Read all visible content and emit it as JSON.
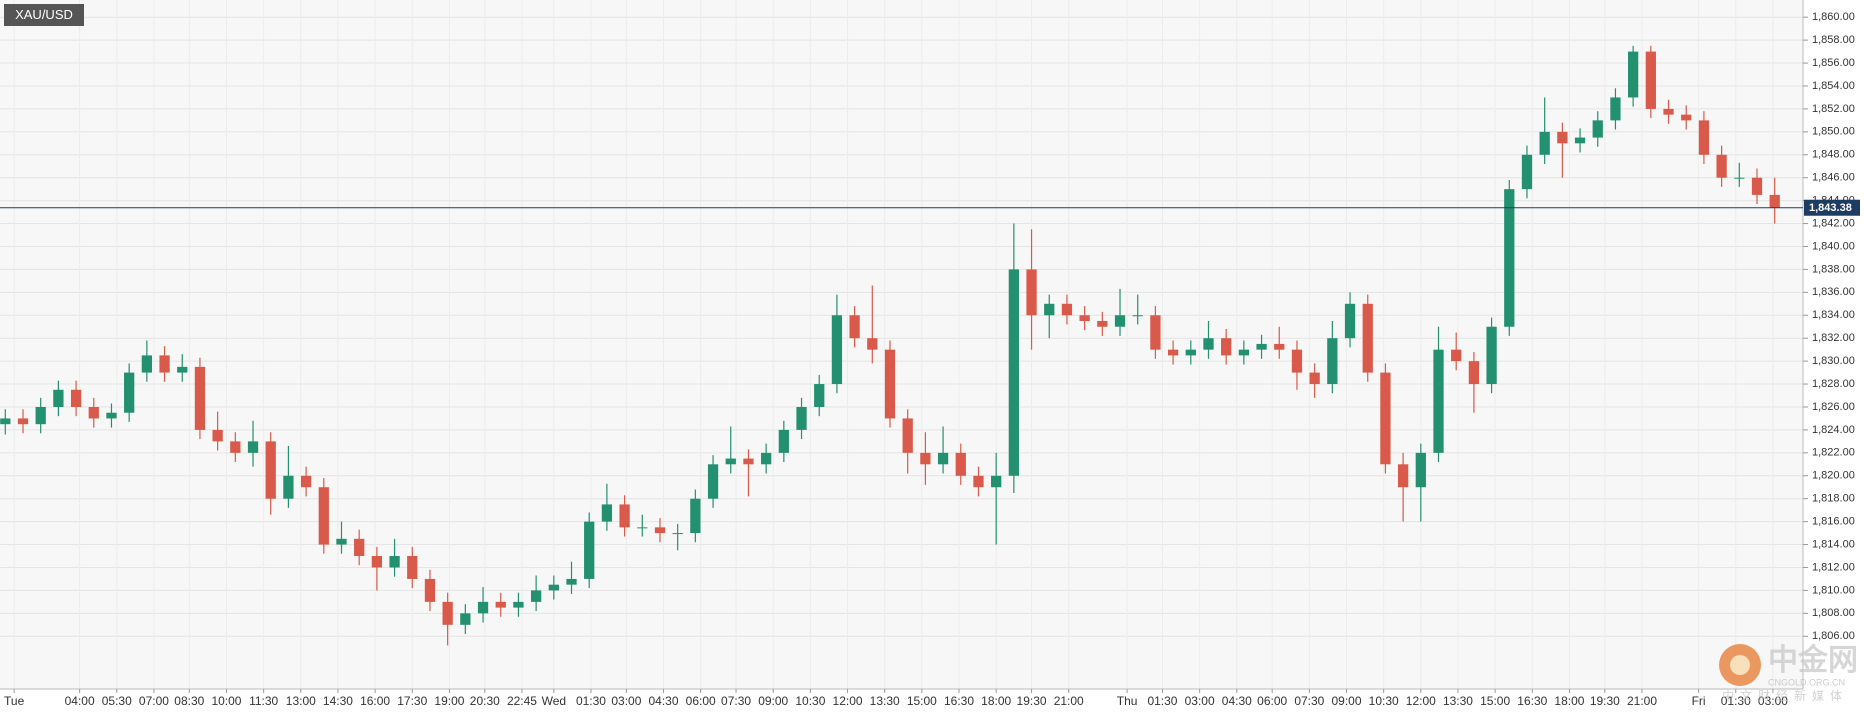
{
  "chart_data": {
    "type": "candlestick",
    "title": "XAU/USD",
    "up_color": "#23906f",
    "down_color": "#d9594a",
    "grid": true,
    "xlim": [
      -0.3,
      101.6
    ],
    "ylim": [
      1801.4,
      1861.5
    ],
    "open": [
      1824.5,
      1825,
      1824.5,
      1826,
      1827.5,
      1826,
      1825,
      1825.5,
      1829,
      1830.5,
      1829,
      1829.5,
      1824,
      1823,
      1822,
      1823,
      1818,
      1820,
      1819,
      1814,
      1814.5,
      1813,
      1812,
      1813,
      1811,
      1809,
      1807,
      1808,
      1809,
      1808.5,
      1809,
      1810,
      1810.5,
      1811,
      1816,
      1817.5,
      1815.5,
      1815.5,
      1815,
      1815,
      1818,
      1821,
      1821.5,
      1821,
      1822,
      1824,
      1826,
      1828,
      1834,
      1832,
      1831,
      1825,
      1822,
      1821,
      1822,
      1820,
      1819,
      1820,
      1838,
      1834,
      1835,
      1834,
      1833.5,
      1833,
      1834,
      1834,
      1831,
      1830.5,
      1831,
      1832,
      1830.5,
      1831,
      1831.5,
      1831,
      1829,
      1828,
      1832,
      1835,
      1829,
      1821,
      1819,
      1822,
      1831,
      1830,
      1828,
      1833,
      1845,
      1848,
      1850,
      1849,
      1849.5,
      1851,
      1853,
      1857,
      1852,
      1851.5,
      1851,
      1848,
      1846,
      1846,
      1844.5
    ],
    "high": [
      1825.8,
      1825.8,
      1826.8,
      1828.3,
      1828.3,
      1826.8,
      1826.3,
      1829.8,
      1831.8,
      1831.3,
      1830.6,
      1830.3,
      1825.6,
      1823.8,
      1824.8,
      1823.8,
      1822.6,
      1820.8,
      1819.8,
      1816,
      1815.3,
      1813.8,
      1814.5,
      1813.8,
      1811.8,
      1809.8,
      1808.8,
      1810.3,
      1809.8,
      1809.8,
      1811.3,
      1811.3,
      1812.5,
      1816.8,
      1819.3,
      1818.3,
      1816.6,
      1816.3,
      1815.8,
      1818.8,
      1821.8,
      1824.3,
      1822.3,
      1822.8,
      1824.8,
      1826.8,
      1828.8,
      1835.8,
      1834.8,
      1836.6,
      1831.8,
      1825.8,
      1823.8,
      1824.3,
      1822.8,
      1820.8,
      1822,
      1842,
      1841.5,
      1835.8,
      1835.8,
      1834.8,
      1834.3,
      1836.3,
      1835.8,
      1834.8,
      1831.8,
      1831.8,
      1833.5,
      1832.8,
      1831.8,
      1832.3,
      1833,
      1831.8,
      1829.8,
      1833.5,
      1836,
      1835.8,
      1829.8,
      1822,
      1822.8,
      1833,
      1832.5,
      1830.8,
      1833.8,
      1845.8,
      1848.8,
      1853,
      1850.8,
      1850.3,
      1851.8,
      1853.8,
      1857.5,
      1857.5,
      1852.8,
      1852.3,
      1851.8,
      1848.8,
      1847.3,
      1846.8,
      1846
    ],
    "low": [
      1823.6,
      1823.7,
      1823.7,
      1825.2,
      1825.2,
      1824.2,
      1824.2,
      1824.7,
      1828.2,
      1828.2,
      1828.2,
      1823.2,
      1822.2,
      1821.2,
      1820.8,
      1816.6,
      1817.2,
      1818.2,
      1813.2,
      1813.2,
      1812.2,
      1810,
      1811.2,
      1810.2,
      1808.2,
      1805.2,
      1806.2,
      1807.2,
      1807.7,
      1807.7,
      1808.2,
      1809.2,
      1809.7,
      1810.2,
      1815.2,
      1814.7,
      1814.7,
      1814.2,
      1813.5,
      1814.2,
      1817.2,
      1820.2,
      1818.2,
      1820.2,
      1821.2,
      1823.2,
      1825.2,
      1827.2,
      1831.2,
      1829.8,
      1824.2,
      1820.2,
      1819.2,
      1820.2,
      1819.2,
      1818.2,
      1814,
      1818.5,
      1831,
      1832,
      1833.2,
      1832.7,
      1832.2,
      1832.2,
      1833.2,
      1830.2,
      1829.7,
      1829.7,
      1830.2,
      1829.7,
      1829.7,
      1830.2,
      1830.2,
      1827.5,
      1826.8,
      1827.2,
      1831.2,
      1828.2,
      1820.2,
      1816,
      1816,
      1821.2,
      1829.2,
      1825.5,
      1827.2,
      1832.2,
      1844.2,
      1847.2,
      1846,
      1848.2,
      1848.7,
      1850.2,
      1852.2,
      1851.2,
      1850.7,
      1850.2,
      1847.2,
      1845.2,
      1845.2,
      1843.7,
      1842
    ],
    "close": [
      1825,
      1824.5,
      1826,
      1827.5,
      1826,
      1825,
      1825.5,
      1829,
      1830.5,
      1829,
      1829.5,
      1824,
      1823,
      1822,
      1823,
      1818,
      1820,
      1819,
      1814,
      1814.5,
      1813,
      1812,
      1813,
      1811,
      1809,
      1807,
      1808,
      1809,
      1808.5,
      1809,
      1810,
      1810.5,
      1811,
      1816,
      1817.5,
      1815.5,
      1815.5,
      1815,
      1815,
      1818,
      1821,
      1821.5,
      1821,
      1822,
      1824,
      1826,
      1828,
      1834,
      1832,
      1831,
      1825,
      1822,
      1821,
      1822,
      1820,
      1819,
      1820,
      1838,
      1834,
      1835,
      1834,
      1833.5,
      1833,
      1834,
      1834,
      1831,
      1830.5,
      1831,
      1832,
      1830.5,
      1831,
      1831.5,
      1831,
      1829,
      1828,
      1832,
      1835,
      1829,
      1821,
      1819,
      1822,
      1831,
      1830,
      1828,
      1833,
      1845,
      1848,
      1850,
      1849,
      1849.5,
      1851,
      1853,
      1857,
      1852,
      1851.5,
      1851,
      1848,
      1846,
      1846,
      1844.5,
      1843.4
    ],
    "last_price": {
      "value": 1843.38,
      "label": "1,843.38"
    },
    "yticks": [
      {
        "value": 1806,
        "label": "1,806.00"
      },
      {
        "value": 1808,
        "label": "1,808.00"
      },
      {
        "value": 1810,
        "label": "1,810.00"
      },
      {
        "value": 1812,
        "label": "1,812.00"
      },
      {
        "value": 1814,
        "label": "1,814.00"
      },
      {
        "value": 1816,
        "label": "1,816.00"
      },
      {
        "value": 1818,
        "label": "1,818.00"
      },
      {
        "value": 1820,
        "label": "1,820.00"
      },
      {
        "value": 1822,
        "label": "1,822.00"
      },
      {
        "value": 1824,
        "label": "1,824.00"
      },
      {
        "value": 1826,
        "label": "1,826.00"
      },
      {
        "value": 1828,
        "label": "1,828.00"
      },
      {
        "value": 1830,
        "label": "1,830.00"
      },
      {
        "value": 1832,
        "label": "1,832.00"
      },
      {
        "value": 1834,
        "label": "1,834.00"
      },
      {
        "value": 1836,
        "label": "1,836.00"
      },
      {
        "value": 1838,
        "label": "1,838.00"
      },
      {
        "value": 1840,
        "label": "1,840.00"
      },
      {
        "value": 1842,
        "label": "1,842.00"
      },
      {
        "value": 1844,
        "label": "1,844.00"
      },
      {
        "value": 1846,
        "label": "1,846.00"
      },
      {
        "value": 1848,
        "label": "1,848.00"
      },
      {
        "value": 1850,
        "label": "1,850.00"
      },
      {
        "value": 1852,
        "label": "1,852.00"
      },
      {
        "value": 1854,
        "label": "1,854.00"
      },
      {
        "value": 1856,
        "label": "1,856.00"
      },
      {
        "value": 1858,
        "label": "1,858.00"
      },
      {
        "value": 1860,
        "label": "1,860.00"
      }
    ],
    "xticks": [
      {
        "value": 0.5,
        "label": "Tue"
      },
      {
        "value": 4.2,
        "label": "04:00"
      },
      {
        "value": 6.3,
        "label": "05:30"
      },
      {
        "value": 8.4,
        "label": "07:00"
      },
      {
        "value": 10.4,
        "label": "08:30"
      },
      {
        "value": 12.5,
        "label": "10:00"
      },
      {
        "value": 14.6,
        "label": "11:30"
      },
      {
        "value": 16.7,
        "label": "13:00"
      },
      {
        "value": 18.8,
        "label": "14:30"
      },
      {
        "value": 20.9,
        "label": "16:00"
      },
      {
        "value": 23.0,
        "label": "17:30"
      },
      {
        "value": 25.1,
        "label": "19:00"
      },
      {
        "value": 27.1,
        "label": "20:30"
      },
      {
        "value": 29.2,
        "label": "22:45"
      },
      {
        "value": 31.0,
        "label": "Wed"
      },
      {
        "value": 33.1,
        "label": "01:30"
      },
      {
        "value": 35.1,
        "label": "03:00"
      },
      {
        "value": 37.2,
        "label": "04:30"
      },
      {
        "value": 39.3,
        "label": "06:00"
      },
      {
        "value": 41.3,
        "label": "07:30"
      },
      {
        "value": 43.4,
        "label": "09:00"
      },
      {
        "value": 45.5,
        "label": "10:30"
      },
      {
        "value": 47.6,
        "label": "12:00"
      },
      {
        "value": 49.7,
        "label": "13:30"
      },
      {
        "value": 51.8,
        "label": "15:00"
      },
      {
        "value": 53.9,
        "label": "16:30"
      },
      {
        "value": 56.0,
        "label": "18:00"
      },
      {
        "value": 58.0,
        "label": "19:30"
      },
      {
        "value": 60.1,
        "label": "21:00"
      },
      {
        "value": 63.4,
        "label": "Thu"
      },
      {
        "value": 65.4,
        "label": "01:30"
      },
      {
        "value": 67.5,
        "label": "03:00"
      },
      {
        "value": 69.6,
        "label": "04:30"
      },
      {
        "value": 71.6,
        "label": "06:00"
      },
      {
        "value": 73.7,
        "label": "07:30"
      },
      {
        "value": 75.8,
        "label": "09:00"
      },
      {
        "value": 77.9,
        "label": "10:30"
      },
      {
        "value": 80.0,
        "label": "12:00"
      },
      {
        "value": 82.1,
        "label": "13:30"
      },
      {
        "value": 84.2,
        "label": "15:00"
      },
      {
        "value": 86.3,
        "label": "16:30"
      },
      {
        "value": 88.4,
        "label": "18:00"
      },
      {
        "value": 90.4,
        "label": "19:30"
      },
      {
        "value": 92.5,
        "label": "21:00"
      },
      {
        "value": 95.7,
        "label": "Fri"
      },
      {
        "value": 97.8,
        "label": "01:30"
      },
      {
        "value": 99.9,
        "label": "03:00"
      }
    ]
  },
  "watermark": {
    "name": "中金网",
    "domain": "CNGOLD.ORG.CN",
    "tagline": "中文财经新媒体"
  }
}
